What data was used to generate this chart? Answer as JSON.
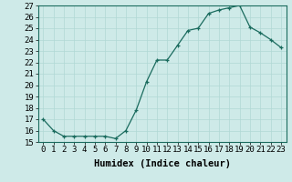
{
  "x": [
    0,
    1,
    2,
    3,
    4,
    5,
    6,
    7,
    8,
    9,
    10,
    11,
    12,
    13,
    14,
    15,
    16,
    17,
    18,
    19,
    20,
    21,
    22,
    23
  ],
  "y": [
    17.0,
    16.0,
    15.5,
    15.5,
    15.5,
    15.5,
    15.5,
    15.3,
    16.0,
    17.8,
    20.3,
    22.2,
    22.2,
    23.5,
    24.8,
    25.0,
    26.3,
    26.6,
    26.8,
    27.0,
    25.1,
    24.6,
    24.0,
    23.3
  ],
  "xlabel": "Humidex (Indice chaleur)",
  "ylim_min": 15,
  "ylim_max": 27,
  "yticks": [
    15,
    16,
    17,
    18,
    19,
    20,
    21,
    22,
    23,
    24,
    25,
    26,
    27
  ],
  "xticks": [
    0,
    1,
    2,
    3,
    4,
    5,
    6,
    7,
    8,
    9,
    10,
    11,
    12,
    13,
    14,
    15,
    16,
    17,
    18,
    19,
    20,
    21,
    22,
    23
  ],
  "line_color": "#1a6b5e",
  "marker": "+",
  "bg_color": "#ceeae8",
  "grid_major_color": "#b0d8d5",
  "grid_minor_color": "#c8e8e5",
  "xlabel_fontsize": 7.5,
  "tick_fontsize": 6.5,
  "marker_size": 3,
  "line_width": 0.9
}
